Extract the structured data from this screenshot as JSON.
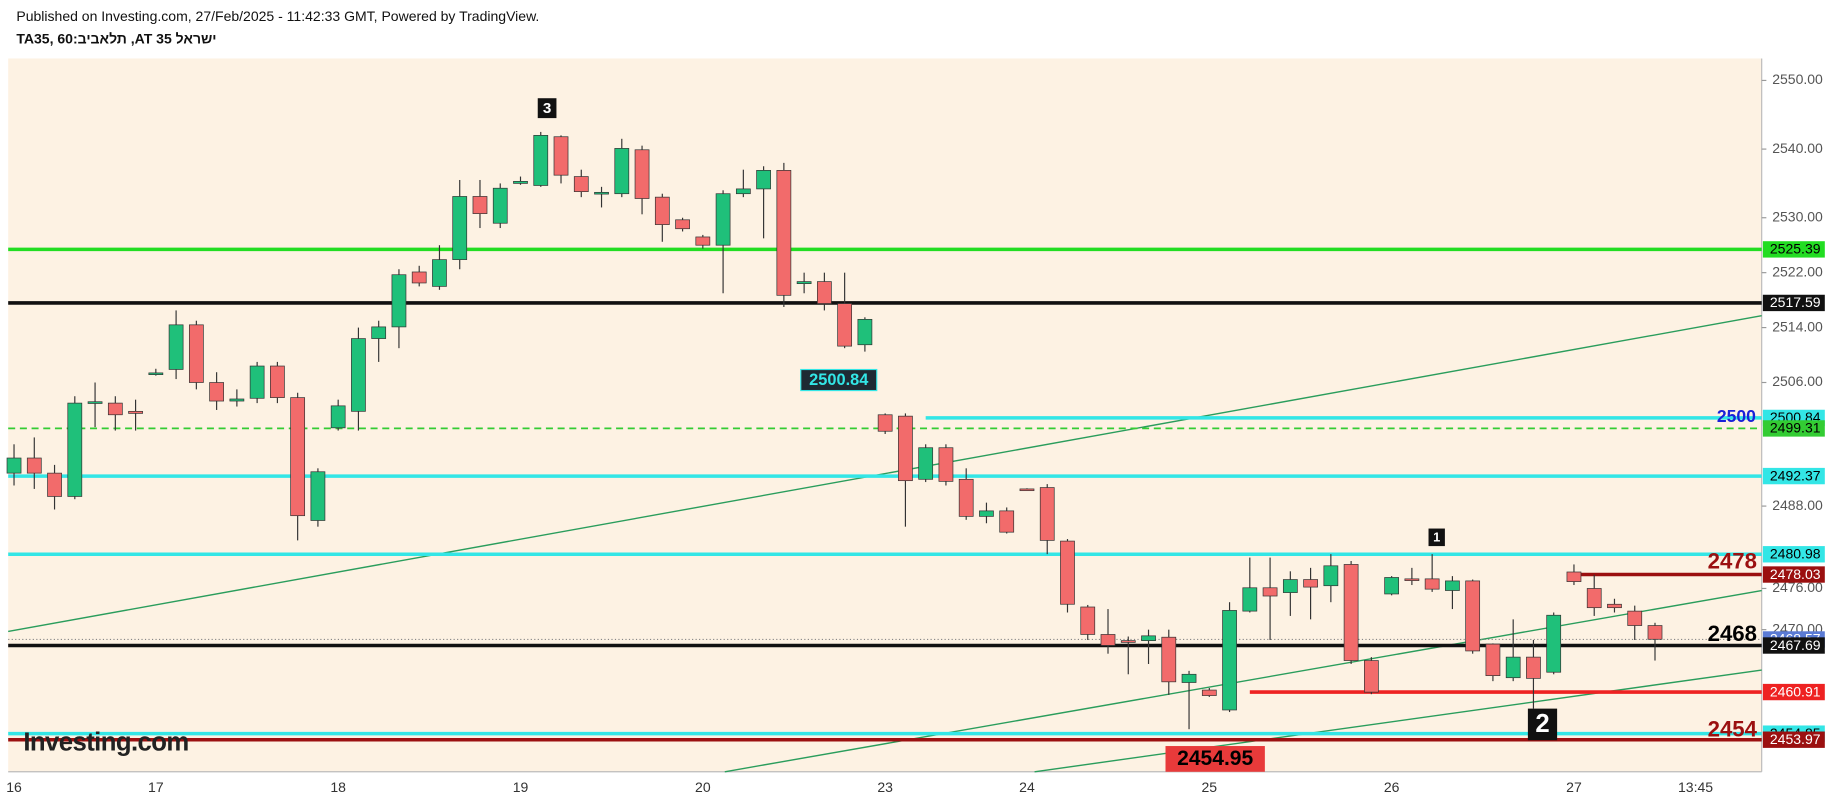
{
  "chart_data": {
    "type": "candlestick",
    "title": "Published on Investing.com, 27/Feb/2025 - 11:42:33 GMT, Powered by TradingView.",
    "subtitle": "TA35, 60:ביבאלת ,AT 35 לארשי",
    "watermark": "Investing.com",
    "categories": [
      "16",
      null,
      null,
      null,
      null,
      null,
      null,
      "17",
      null,
      null,
      null,
      null,
      null,
      null,
      null,
      null,
      "18",
      null,
      null,
      null,
      null,
      null,
      null,
      null,
      null,
      "19",
      null,
      null,
      null,
      null,
      null,
      null,
      null,
      null,
      "20",
      null,
      null,
      null,
      null,
      null,
      null,
      null,
      null,
      "23",
      null,
      null,
      null,
      null,
      null,
      null,
      "24",
      null,
      null,
      null,
      null,
      null,
      null,
      null,
      null,
      "25",
      null,
      null,
      null,
      null,
      null,
      null,
      null,
      null,
      "26",
      null,
      null,
      null,
      null,
      null,
      null,
      null,
      null,
      "27",
      null,
      null,
      null,
      null,
      null,
      "13:45"
    ],
    "open": [
      2492.8,
      2495,
      2492.8,
      2489.4,
      2503,
      2503,
      2501.8,
      2507.2,
      2507.9,
      2514.4,
      2506,
      2503.3,
      2503.7,
      2508.4,
      2503.8,
      2485.9,
      2499.4,
      2501.8,
      2512.4,
      2514.1,
      2522.1,
      2520,
      2523.9,
      2533.1,
      2529.2,
      2535,
      2534.7,
      2541.8,
      2536,
      2533.5,
      2533.5,
      2539.9,
      2533,
      2529.7,
      2527.2,
      2526,
      2533.5,
      2534.2,
      2536.9,
      2520.4,
      2520.7,
      2517.5,
      2511.5,
      2501.3,
      2501.1,
      2491.9,
      2496.5,
      2491.9,
      2486.5,
      2487.3,
      2490.5,
      2490.7,
      2482.9,
      2473.3,
      2469.3,
      2468.4,
      2468.4,
      2468.9,
      2462.3,
      2461.2,
      2458.3,
      2472.7,
      2476.1,
      2475.4,
      2477.3,
      2476.4,
      2479.5,
      2465.5,
      2475.2,
      2477.4,
      2477.4,
      2475.7,
      2477.1,
      2467.9,
      2463,
      2466,
      2463.8,
      2478.4,
      2476,
      2473.7,
      2472.7,
      2470.6,
      null,
      null
    ],
    "high": [
      2497,
      2498,
      2494,
      2504,
      2506,
      2504,
      2503.5,
      2508,
      2516.5,
      2515,
      2507.5,
      2505,
      2509,
      2509,
      2504.5,
      2493.5,
      2503.5,
      2514,
      2515,
      2522.5,
      2523,
      2526,
      2535.5,
      2535.5,
      2535,
      2536,
      2542.5,
      2542,
      2537,
      2534.5,
      2541.5,
      2540.5,
      2533.5,
      2530,
      2527.5,
      2534,
      2537,
      2537.5,
      2538,
      2522,
      2522,
      2522,
      2515.5,
      2501.5,
      2501.5,
      2497,
      2497,
      2493.5,
      2488.5,
      2487.8,
      2490.6,
      2491.2,
      2483.2,
      2473.6,
      2473,
      2469,
      2470,
      2470,
      2464,
      2461.5,
      2474,
      2480.5,
      2480.5,
      2478.5,
      2479,
      2481,
      2480,
      2466,
      2477.8,
      2479,
      2481,
      2477.8,
      2477.3,
      2468,
      2471.5,
      2468.5,
      2472.5,
      2479.5,
      2478,
      2474.5,
      2473.5,
      2471,
      null,
      null
    ],
    "low": [
      2491,
      2490.5,
      2487.5,
      2489,
      2499.5,
      2499,
      2499,
      2507,
      2506.5,
      2505,
      2502,
      2502.5,
      2503,
      2503,
      2483,
      2485,
      2499,
      2499,
      2509,
      2511,
      2520,
      2519.5,
      2522.5,
      2528.5,
      2528.5,
      2534.8,
      2534.5,
      2535,
      2533,
      2531.5,
      2533,
      2530.5,
      2526.5,
      2528,
      2525.5,
      2519,
      2533,
      2527,
      2517,
      2519,
      2516.5,
      2511,
      2510.5,
      2498.5,
      2485,
      2491.5,
      2491,
      2486,
      2485.5,
      2484,
      2490.2,
      2481,
      2472.5,
      2468.5,
      2466.5,
      2463.5,
      2465,
      2460.5,
      2455.5,
      2460.2,
      2458,
      2472.5,
      2468.5,
      2472,
      2471.5,
      2474,
      2465,
      2460.6,
      2475,
      2476.5,
      2475.5,
      2473,
      2466.5,
      2462.5,
      2462.5,
      2458.5,
      2463.5,
      2476.5,
      2472,
      2472.5,
      2468.5,
      2465.5,
      null,
      null
    ],
    "close": [
      2495,
      2492.8,
      2489.4,
      2503,
      2503.2,
      2501.3,
      2501.5,
      2507.4,
      2514.4,
      2506,
      2503.3,
      2503.6,
      2508.4,
      2503.8,
      2486.6,
      2493,
      2502.6,
      2512.4,
      2514.1,
      2521.7,
      2520.5,
      2523.9,
      2533.1,
      2530.6,
      2534.3,
      2535.3,
      2542,
      2536.2,
      2533.8,
      2533.7,
      2540.1,
      2532.8,
      2529,
      2528.4,
      2526,
      2533.5,
      2534.2,
      2536.9,
      2518.7,
      2520.7,
      2517.5,
      2511.3,
      2515.2,
      2498.9,
      2491.7,
      2496.5,
      2491.6,
      2486.5,
      2487.3,
      2484.2,
      2490.3,
      2483,
      2473.7,
      2469.3,
      2467.7,
      2468.2,
      2469.1,
      2462.4,
      2463.5,
      2460.4,
      2472.8,
      2476.1,
      2474.9,
      2477.3,
      2476.2,
      2479.3,
      2465.5,
      2460.9,
      2477.6,
      2477.2,
      2475.9,
      2477.1,
      2466.9,
      2463.3,
      2466,
      2462.9,
      2472.1,
      2477,
      2473.2,
      2473.2,
      2470.6,
      2468.6,
      null,
      null
    ],
    "up_color": "#1fc07a",
    "down_color": "#f26b6b",
    "ylim": [
      2449.3,
      2553.2
    ],
    "yticks": [
      {
        "value": 2550,
        "label": "2550.00"
      },
      {
        "value": 2540,
        "label": "2540.00"
      },
      {
        "value": 2530,
        "label": "2530.00"
      },
      {
        "value": 2522,
        "label": "2522.00"
      },
      {
        "value": 2514,
        "label": "2514.00"
      },
      {
        "value": 2506,
        "label": "2506.00"
      },
      {
        "value": 2488,
        "label": "2488.00"
      },
      {
        "value": 2476,
        "label": "2476.00"
      },
      {
        "value": 2470,
        "label": "2470.00"
      }
    ],
    "levels": [
      {
        "value": 2525.39,
        "color": "#22dd22",
        "style": "solid"
      },
      {
        "value": 2517.59,
        "color": "#111111",
        "style": "solid"
      },
      {
        "value": 2500.84,
        "color": "#33e6e6",
        "style": "solid",
        "start": 45
      },
      {
        "value": 2499.31,
        "color": "#33cc33",
        "style": "dashed"
      },
      {
        "value": 2492.37,
        "color": "#33e6e6",
        "style": "solid"
      },
      {
        "value": 2480.98,
        "color": "#33e6e6",
        "style": "solid"
      },
      {
        "value": 2478.03,
        "color": "#9b1010",
        "style": "solid",
        "start": 77
      },
      {
        "value": 2468.57,
        "color": "#5b7bd5",
        "style": "dotted"
      },
      {
        "value": 2467.69,
        "color": "#111111",
        "style": "solid"
      },
      {
        "value": 2460.91,
        "color": "#ee2222",
        "style": "solid",
        "start": 61
      },
      {
        "value": 2454.85,
        "color": "#33e6e6",
        "style": "solid"
      },
      {
        "value": 2453.97,
        "color": "#9b1010",
        "style": "solid"
      }
    ],
    "annotations": [
      "2500",
      "2478",
      "2468",
      "2454",
      "2454.95",
      "2500.84",
      "3",
      "1",
      "2"
    ]
  }
}
